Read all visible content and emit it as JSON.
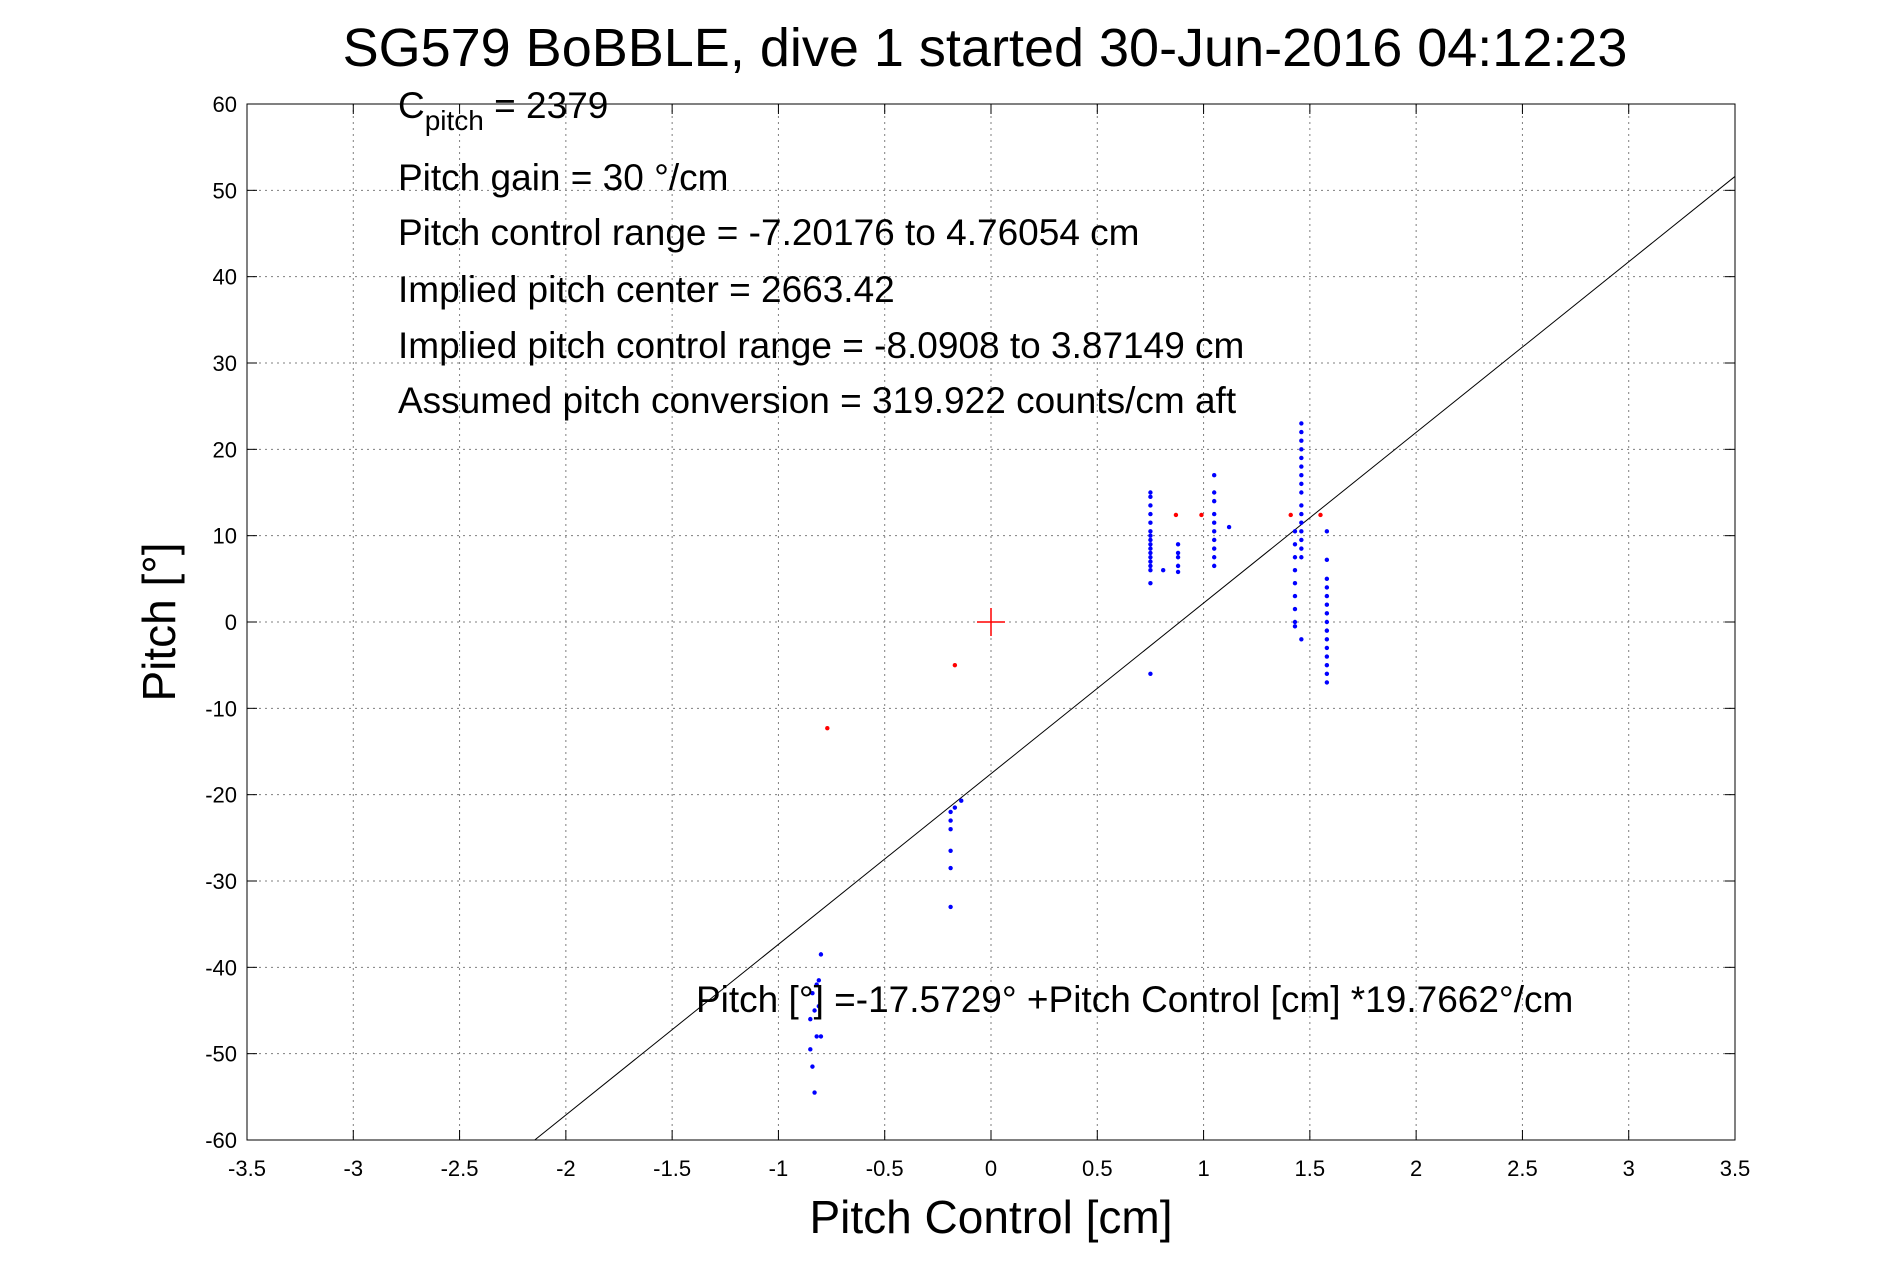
{
  "chart_data": {
    "type": "scatter",
    "title": "SG579 BoBBLE, dive 1 started 30-Jun-2016 04:12:23",
    "xlabel": "Pitch Control [cm]",
    "ylabel": "Pitch [°]",
    "xlim": [
      -3.5,
      3.5
    ],
    "ylim": [
      -60,
      60
    ],
    "xticks": [
      "-3.5",
      "-3",
      "-2.5",
      "-2",
      "-1.5",
      "-1",
      "-0.5",
      "0",
      "0.5",
      "1",
      "1.5",
      "2",
      "2.5",
      "3",
      "3.5"
    ],
    "yticks": [
      "60",
      "50",
      "40",
      "30",
      "20",
      "10",
      "0",
      "-10",
      "-20",
      "-30",
      "-40",
      "-50",
      "-60"
    ],
    "grid": true,
    "annotations": {
      "cpitch_sym": "C",
      "cpitch_sub": "pitch",
      "cpitch_val": " = 2379",
      "gain": "Pitch gain = 30 °/cm",
      "range": "Pitch control range = -7.20176 to 4.76054 cm",
      "center": "Implied pitch center = 2663.42",
      "implied_range": "Implied pitch control range = -8.0908 to 3.87149 cm",
      "conversion": "Assumed pitch conversion = 319.922 counts/cm aft",
      "equation": "Pitch [°] =-17.5729° +Pitch Control [cm] *19.7662°/cm"
    },
    "fit": {
      "intercept": -17.5729,
      "slope": 19.7662
    },
    "center_marker": {
      "x": 0,
      "y": 0
    },
    "series": [
      {
        "color": "#0000ff",
        "points": [
          [
            -0.83,
            -54.5
          ],
          [
            -0.84,
            -51.5
          ],
          [
            -0.85,
            -49.5
          ],
          [
            -0.82,
            -48
          ],
          [
            -0.8,
            -48
          ],
          [
            -0.85,
            -46
          ],
          [
            -0.83,
            -45
          ],
          [
            -0.81,
            -44.5
          ],
          [
            -0.84,
            -43
          ],
          [
            -0.82,
            -42
          ],
          [
            -0.81,
            -41.5
          ],
          [
            -0.8,
            -38.5
          ],
          [
            -0.19,
            -33
          ],
          [
            -0.19,
            -28.5
          ],
          [
            -0.19,
            -26.5
          ],
          [
            -0.19,
            -24
          ],
          [
            -0.19,
            -23
          ],
          [
            -0.19,
            -22
          ],
          [
            -0.17,
            -21.5
          ],
          [
            -0.14,
            -20.7
          ],
          [
            0.75,
            -6
          ],
          [
            0.75,
            4.5
          ],
          [
            0.75,
            6
          ],
          [
            0.75,
            6.5
          ],
          [
            0.75,
            7
          ],
          [
            0.75,
            7.5
          ],
          [
            0.75,
            8
          ],
          [
            0.75,
            8.5
          ],
          [
            0.75,
            9
          ],
          [
            0.75,
            9.5
          ],
          [
            0.75,
            10
          ],
          [
            0.75,
            10.5
          ],
          [
            0.75,
            11.5
          ],
          [
            0.75,
            12.5
          ],
          [
            0.75,
            13.5
          ],
          [
            0.75,
            14.5
          ],
          [
            0.75,
            15
          ],
          [
            0.81,
            6
          ],
          [
            0.88,
            5.8
          ],
          [
            0.88,
            6.5
          ],
          [
            0.88,
            7.5
          ],
          [
            0.88,
            8
          ],
          [
            0.88,
            9
          ],
          [
            1.05,
            6.5
          ],
          [
            1.05,
            7.5
          ],
          [
            1.05,
            8.5
          ],
          [
            1.05,
            9.5
          ],
          [
            1.05,
            10.5
          ],
          [
            1.05,
            11.5
          ],
          [
            1.05,
            12.5
          ],
          [
            1.05,
            14
          ],
          [
            1.05,
            15
          ],
          [
            1.05,
            17
          ],
          [
            1.12,
            11
          ],
          [
            1.43,
            -0.5
          ],
          [
            1.43,
            0
          ],
          [
            1.43,
            1.5
          ],
          [
            1.43,
            3
          ],
          [
            1.43,
            4.5
          ],
          [
            1.43,
            6
          ],
          [
            1.43,
            7.5
          ],
          [
            1.43,
            9
          ],
          [
            1.43,
            10.5
          ],
          [
            1.46,
            -2
          ],
          [
            1.46,
            7.5
          ],
          [
            1.46,
            8.5
          ],
          [
            1.46,
            9.5
          ],
          [
            1.46,
            10.5
          ],
          [
            1.46,
            11.5
          ],
          [
            1.46,
            12.5
          ],
          [
            1.46,
            13.5
          ],
          [
            1.46,
            15
          ],
          [
            1.46,
            16
          ],
          [
            1.46,
            17
          ],
          [
            1.46,
            18
          ],
          [
            1.46,
            19
          ],
          [
            1.46,
            20
          ],
          [
            1.46,
            21
          ],
          [
            1.46,
            22
          ],
          [
            1.46,
            23
          ],
          [
            1.58,
            -7
          ],
          [
            1.58,
            -6
          ],
          [
            1.58,
            -5
          ],
          [
            1.58,
            -4
          ],
          [
            1.58,
            -3
          ],
          [
            1.58,
            -2
          ],
          [
            1.58,
            -1
          ],
          [
            1.58,
            0
          ],
          [
            1.58,
            1
          ],
          [
            1.58,
            2
          ],
          [
            1.58,
            3
          ],
          [
            1.58,
            4
          ],
          [
            1.58,
            5
          ],
          [
            1.58,
            7.2
          ],
          [
            1.58,
            10.5
          ]
        ]
      },
      {
        "color": "#ff0000",
        "points": [
          [
            -0.77,
            -12.3
          ],
          [
            -0.17,
            -5
          ],
          [
            0.87,
            12.4
          ],
          [
            0.99,
            12.4
          ],
          [
            1.41,
            12.4
          ],
          [
            1.55,
            12.4
          ]
        ]
      }
    ]
  }
}
